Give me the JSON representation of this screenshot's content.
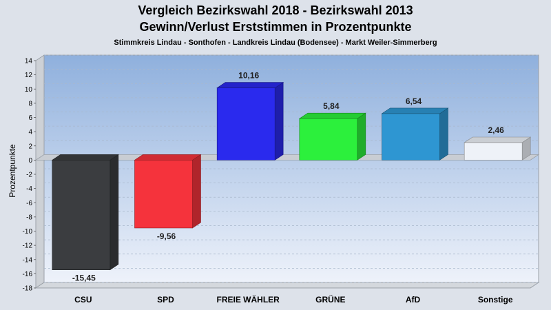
{
  "chart_data": {
    "type": "bar",
    "title": "Vergleich Bezirkswahl 2018 - Bezirkswahl 2013",
    "title2": "Gewinn/Verlust Erststimmen in Prozentpunkte",
    "subtitle": "Stimmkreis Lindau - Sonthofen - Landkreis Lindau (Bodensee) - Markt Weiler-Simmerberg",
    "xlabel": "",
    "ylabel": "Prozentpunkte",
    "ylim": [
      -18,
      14
    ],
    "yticks": [
      14,
      12,
      10,
      8,
      6,
      4,
      2,
      0,
      -2,
      -4,
      -6,
      -8,
      -10,
      -12,
      -14,
      -16,
      -18
    ],
    "categories": [
      "CSU",
      "SPD",
      "FREIE WÄHLER",
      "GRÜNE",
      "AfD",
      "Sonstige"
    ],
    "values": [
      -15.45,
      -9.56,
      10.16,
      5.84,
      6.54,
      2.46
    ],
    "value_labels": [
      "-15,45",
      "-9,56",
      "10,16",
      "5,84",
      "6,54",
      "2,46"
    ],
    "colors": [
      "#3b3d40",
      "#f5333c",
      "#2a2aee",
      "#2cf03c",
      "#2e96d2",
      "#eef2f8"
    ],
    "grid": true,
    "legend": "none"
  }
}
